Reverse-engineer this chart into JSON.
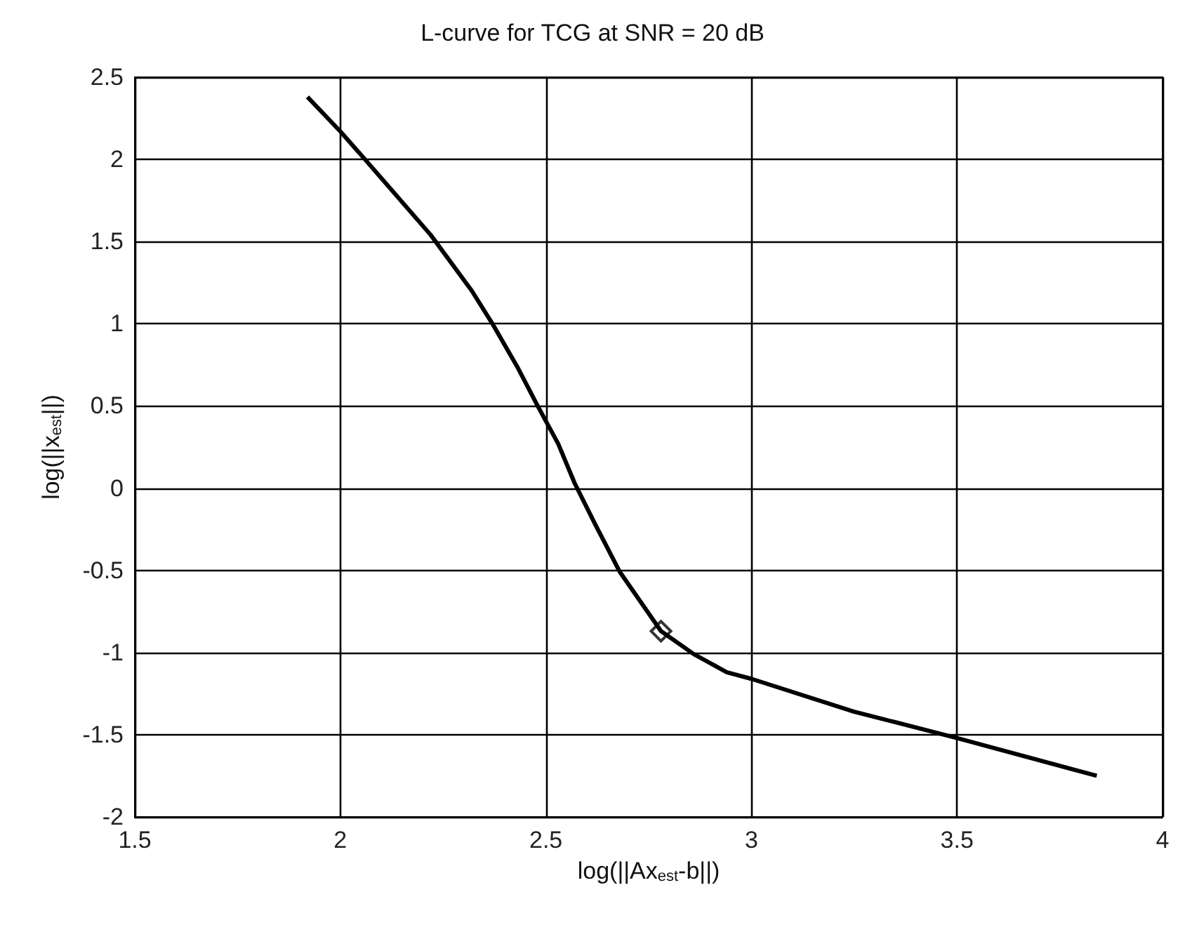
{
  "chart_data": {
    "type": "line",
    "title": "L-curve for TCG at SNR = 20 dB",
    "xlabel": "log(||Ax$_{est}$-b||)",
    "ylabel": "log(||x$_{est}$||)",
    "xlim": [
      1.5,
      4
    ],
    "xticks": [
      1.5,
      2,
      2.5,
      3,
      3.5,
      4
    ],
    "ylim": [
      -2,
      2.5
    ],
    "yticks": [
      -2,
      -1.5,
      -1,
      -0.5,
      0,
      0.5,
      1,
      1.5,
      2,
      2.5
    ],
    "grid": true,
    "series": [
      {
        "color": "#000000",
        "marker": "none",
        "x": [
          1.92,
          2.0,
          2.06,
          2.22,
          2.32,
          2.37,
          2.43,
          2.48,
          2.53,
          2.57,
          2.62,
          2.68,
          2.78,
          2.86,
          2.94,
          3.0,
          3.25,
          3.5,
          3.84
        ],
        "values": [
          2.38,
          2.17,
          2.0,
          1.54,
          1.2,
          1.0,
          0.74,
          0.5,
          0.27,
          0.03,
          -0.22,
          -0.51,
          -0.87,
          -1.01,
          -1.12,
          -1.16,
          -1.36,
          -1.52,
          -1.75
        ]
      },
      {
        "type": "scatter",
        "color": "#000000",
        "marker": "diamond",
        "x": [
          2.78
        ],
        "values": [
          -0.87
        ]
      }
    ]
  }
}
